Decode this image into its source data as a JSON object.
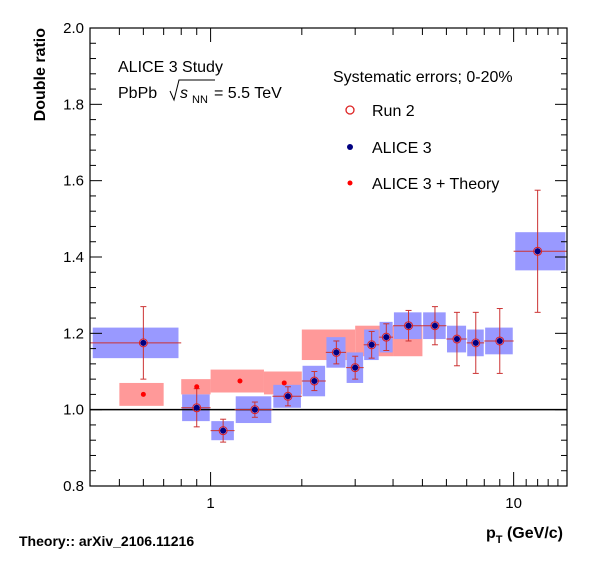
{
  "chart_data": {
    "type": "scatter",
    "title": "",
    "xlabel_main": "p",
    "xlabel_sub": "T",
    "xlabel_unit": " (GeV/c)",
    "ylabel": "Double ratio",
    "x_scale": "log",
    "xlim": [
      0.4,
      15
    ],
    "ylim": [
      0.8,
      2.0
    ],
    "y_ticks": [
      "0.8",
      "1.0",
      "1.2",
      "1.4",
      "1.6",
      "1.8",
      "2.0"
    ],
    "x_tick_labels": [
      "1",
      "10"
    ],
    "reference_line_y": 1.0,
    "annotation_line1": "ALICE 3 Study",
    "annotation_line2_prefix": "PbPb",
    "annotation_sqrt_var": "s",
    "annotation_sqrt_sub": "NN",
    "annotation_line2_suffix": "= 5.5 TeV",
    "legend_title": "Systematic errors; 0-20%",
    "legend_placement": "top-right",
    "colors": {
      "run2_box": "#ff9999",
      "alice3_box": "#9999ff",
      "run2_marker": "#dd2222",
      "alice3_marker": "#000080",
      "theory_marker": "#ff0000",
      "errorbar": "#cc3333"
    },
    "series": [
      {
        "name": "Run 2",
        "marker": "open-circle",
        "points": [
          {
            "x": 0.6,
            "y": 1.04,
            "xlo": 0.5,
            "xhi": 0.7,
            "sys": 0.03
          },
          {
            "x": 0.9,
            "y": 1.06,
            "xlo": 0.8,
            "xhi": 1.0,
            "sys": 0.02
          },
          {
            "x": 1.25,
            "y": 1.075,
            "xlo": 1.0,
            "xhi": 1.5,
            "sys": 0.03
          },
          {
            "x": 1.75,
            "y": 1.07,
            "xlo": 1.5,
            "xhi": 2.0,
            "sys": 0.03
          },
          {
            "x": 2.5,
            "y": 1.17,
            "xlo": 2.0,
            "xhi": 3.0,
            "sys": 0.04
          },
          {
            "x": 3.5,
            "y": 1.18,
            "xlo": 3.0,
            "xhi": 4.0,
            "sys": 0.04
          },
          {
            "x": 4.5,
            "y": 1.18,
            "xlo": 4.0,
            "xhi": 5.0,
            "sys": 0.04
          }
        ]
      },
      {
        "name": "ALICE 3",
        "marker": "filled-circle",
        "points": [
          {
            "x": 0.6,
            "y": 1.175,
            "xlo": 0.4,
            "xhi": 0.8,
            "err": 0.095,
            "sys": 0.04
          },
          {
            "x": 0.9,
            "y": 1.005,
            "xlo": 0.8,
            "xhi": 1.0,
            "err": 0.05,
            "sys": 0.035
          },
          {
            "x": 1.1,
            "y": 0.945,
            "xlo": 1.0,
            "xhi": 1.2,
            "err": 0.03,
            "sys": 0.025
          },
          {
            "x": 1.4,
            "y": 1.0,
            "xlo": 1.2,
            "xhi": 1.6,
            "err": 0.02,
            "sys": 0.035
          },
          {
            "x": 1.8,
            "y": 1.035,
            "xlo": 1.6,
            "xhi": 2.0,
            "err": 0.025,
            "sys": 0.03
          },
          {
            "x": 2.2,
            "y": 1.075,
            "xlo": 2.0,
            "xhi": 2.4,
            "err": 0.025,
            "sys": 0.04
          },
          {
            "x": 2.6,
            "y": 1.15,
            "xlo": 2.4,
            "xhi": 2.8,
            "err": 0.03,
            "sys": 0.04
          },
          {
            "x": 3.0,
            "y": 1.11,
            "xlo": 2.8,
            "xhi": 3.2,
            "err": 0.03,
            "sys": 0.04
          },
          {
            "x": 3.4,
            "y": 1.17,
            "xlo": 3.2,
            "xhi": 3.6,
            "err": 0.035,
            "sys": 0.04
          },
          {
            "x": 3.8,
            "y": 1.19,
            "xlo": 3.6,
            "xhi": 4.0,
            "err": 0.035,
            "sys": 0.04
          },
          {
            "x": 4.5,
            "y": 1.22,
            "xlo": 4.0,
            "xhi": 5.0,
            "err": 0.04,
            "sys": 0.035
          },
          {
            "x": 5.5,
            "y": 1.22,
            "xlo": 5.0,
            "xhi": 6.0,
            "err": 0.05,
            "sys": 0.035
          },
          {
            "x": 6.5,
            "y": 1.185,
            "xlo": 6.0,
            "xhi": 7.0,
            "err": 0.07,
            "sys": 0.035
          },
          {
            "x": 7.5,
            "y": 1.175,
            "xlo": 7.0,
            "xhi": 8.0,
            "err": 0.08,
            "sys": 0.035
          },
          {
            "x": 9.0,
            "y": 1.18,
            "xlo": 8.0,
            "xhi": 10.0,
            "err": 0.085,
            "sys": 0.035
          },
          {
            "x": 12.0,
            "y": 1.415,
            "xlo": 10.0,
            "xhi": 15.0,
            "err": 0.16,
            "sys": 0.05
          }
        ]
      },
      {
        "name": "ALICE 3 + Theory",
        "marker": "small-filled-circle",
        "points": [
          {
            "x": 0.6,
            "y": 1.04
          },
          {
            "x": 0.9,
            "y": 1.06
          },
          {
            "x": 1.25,
            "y": 1.075
          },
          {
            "x": 1.75,
            "y": 1.07
          }
        ]
      }
    ]
  },
  "footer": "Theory:: arXiv_2106.11216"
}
